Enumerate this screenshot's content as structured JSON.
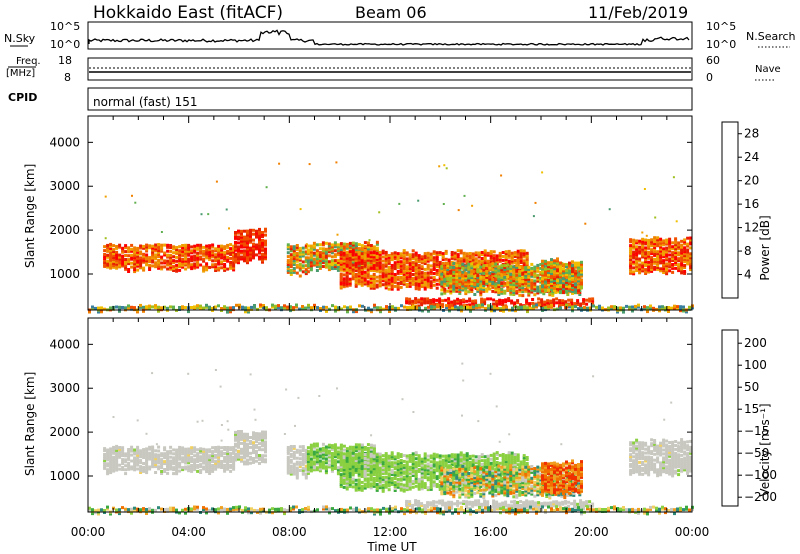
{
  "header": {
    "station": "Hokkaido East (fitACF)",
    "beam": "Beam 06",
    "date": "11/Feb/2019"
  },
  "top_panels": {
    "nsky": {
      "label": "N.Sky",
      "ticks": [
        "10^5",
        "10^0"
      ]
    },
    "nsearch": {
      "label": "N.Search",
      "ticks": [
        "10^5",
        "10^0"
      ]
    },
    "freq": {
      "label_line1": "Freq.",
      "label_line2": "[MHz]",
      "ticks": [
        "18",
        "8"
      ]
    },
    "nave": {
      "label": "Nave",
      "ticks": [
        "60",
        "0"
      ]
    },
    "cpid": {
      "label": "CPID",
      "value": "normal (fast) 151"
    }
  },
  "chart_data": [
    {
      "type": "heatmap",
      "name": "power",
      "xlabel": "Time UT",
      "ylabel": "Slant Range [km]",
      "x_tick_labels": [
        "00:00",
        "04:00",
        "08:00",
        "12:00",
        "16:00",
        "20:00",
        "00:00"
      ],
      "y_tick_labels": [
        "1000",
        "2000",
        "3000",
        "4000"
      ],
      "xlim_hours": [
        0,
        24
      ],
      "ylim_km": [
        180,
        4600
      ],
      "colorbar": {
        "label": "Power [dB]",
        "ticks": [
          "4",
          "8",
          "12",
          "16",
          "20",
          "24",
          "28"
        ],
        "range": [
          0,
          30
        ],
        "colors": [
          "#1010ff",
          "#2050c0",
          "#3a7fa0",
          "#4a9a70",
          "#60b050",
          "#a0c020",
          "#f0c000",
          "#f0a000",
          "#f08000",
          "#f05000",
          "#e82000",
          "#ff0000"
        ]
      }
    },
    {
      "type": "heatmap",
      "name": "velocity",
      "xlabel": "Time UT",
      "ylabel": "Slant Range [km]",
      "x_tick_labels": [
        "00:00",
        "04:00",
        "08:00",
        "12:00",
        "16:00",
        "20:00",
        "00:00"
      ],
      "y_tick_labels": [
        "1000",
        "2000",
        "3000",
        "4000"
      ],
      "xlim_hours": [
        0,
        24
      ],
      "ylim_km": [
        180,
        4600
      ],
      "colorbar": {
        "label": "Velocity [m s⁻¹]",
        "ticks": [
          "200",
          "100",
          "50",
          "15",
          "−15",
          "−50",
          "−100",
          "−200"
        ],
        "colors": [
          "#1818e0",
          "#2a5ab0",
          "#2e8a7a",
          "#3aaa40",
          "#8ad040",
          "#c8c8c0",
          "#f0d060",
          "#f0a020",
          "#f07000",
          "#f03000",
          "#ff0000"
        ]
      }
    }
  ],
  "colors": {
    "ground_scatter": "#c8c8c0",
    "power_high": "#e82000",
    "velocity_positive": "#7ed040"
  }
}
